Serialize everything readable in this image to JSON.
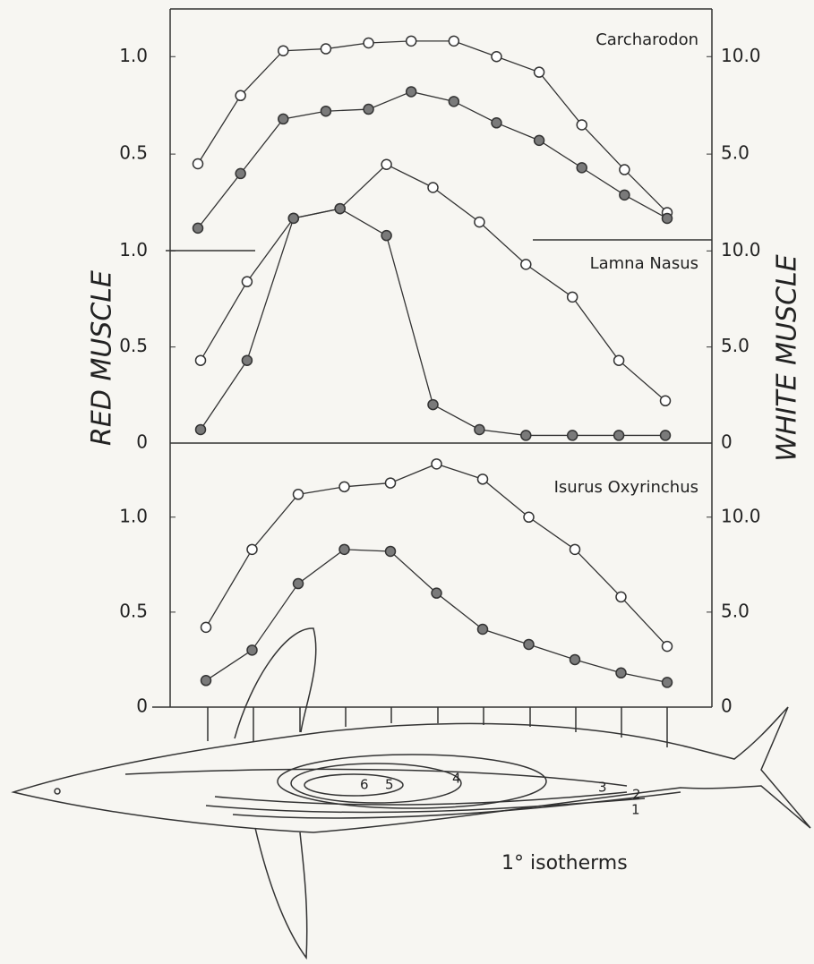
{
  "axis_labels": {
    "y": "RED MUSCLE",
    "y2": "WHITE MUSCLE"
  },
  "chart_data": [
    {
      "type": "line",
      "title": "Carcharodon",
      "categories": [
        null,
        null,
        null,
        null,
        null,
        null,
        null,
        null,
        null,
        null,
        null,
        null
      ],
      "series": [
        {
          "color": "#ffffff",
          "axis": "y2",
          "values": [
            4.5,
            8.0,
            10.3,
            10.4,
            10.7,
            10.8,
            10.8,
            10.0,
            9.2,
            6.5,
            4.2,
            2.0
          ]
        },
        {
          "color": "#7a7a7a",
          "values": [
            0.12,
            0.4,
            0.68,
            0.72,
            0.73,
            0.82,
            0.77,
            0.66,
            0.57,
            0.43,
            0.29,
            0.17
          ]
        }
      ],
      "ylim": [
        0,
        1.24
      ],
      "yticks": [
        {
          "value": 0.5,
          "label": "0.5"
        },
        {
          "value": 1,
          "label": "1.0"
        }
      ],
      "y2lim": [
        0,
        12.4
      ],
      "y2ticks": [
        {
          "value": 5,
          "label": "5.0"
        },
        {
          "value": 10,
          "label": "10.0"
        }
      ]
    },
    {
      "type": "line",
      "title": "Lamna Nasus",
      "categories": [
        null,
        null,
        null,
        null,
        null,
        null,
        null,
        null,
        null,
        null,
        null
      ],
      "series": [
        {
          "color": "#ffffff",
          "axis": "y2",
          "values": [
            4.3,
            8.4,
            11.7,
            12.2,
            14.5,
            13.3,
            11.5,
            9.3,
            7.6,
            4.3,
            2.2
          ]
        },
        {
          "color": "#7a7a7a",
          "values": [
            0.07,
            0.43,
            1.17,
            1.22,
            1.08,
            0.2,
            0.07,
            0.04,
            0.04,
            0.04,
            0.04
          ]
        }
      ],
      "ylim": [
        0,
        1.5
      ],
      "yticks": [
        0,
        0.5,
        {
          "value": 1,
          "label": "1.0"
        }
      ],
      "y2lim": [
        0,
        15
      ],
      "y2ticks": [
        0,
        {
          "value": 5,
          "label": "5.0"
        },
        {
          "value": 10,
          "label": "10.0"
        }
      ]
    },
    {
      "type": "line",
      "title": "Isurus Oxyrinchus",
      "categories": [
        null,
        null,
        null,
        null,
        null,
        null,
        null,
        null,
        null,
        null,
        null
      ],
      "series": [
        {
          "color": "#ffffff",
          "axis": "y2",
          "values": [
            4.2,
            8.3,
            11.2,
            11.6,
            11.8,
            12.8,
            12.0,
            10.0,
            8.3,
            5.8,
            3.2
          ]
        },
        {
          "color": "#7a7a7a",
          "values": [
            0.14,
            0.3,
            0.65,
            0.83,
            0.82,
            0.6,
            0.41,
            0.33,
            0.25,
            0.18,
            0.13
          ]
        }
      ],
      "ylim": [
        0,
        1.39
      ],
      "yticks": [
        0,
        0.5,
        {
          "value": 1,
          "label": "1.0"
        }
      ],
      "y2lim": [
        0,
        13.9
      ],
      "y2ticks": [
        0,
        {
          "value": 5,
          "label": "5.0"
        },
        {
          "value": 10,
          "label": "10.0"
        }
      ]
    }
  ],
  "figure": {
    "caption": "1° isotherms",
    "isotherms": [
      1,
      2,
      3,
      4,
      5,
      6
    ]
  }
}
